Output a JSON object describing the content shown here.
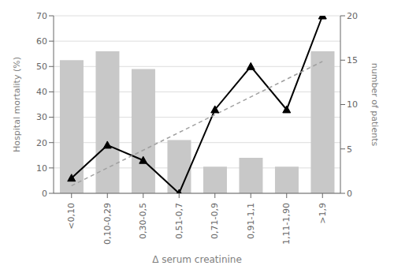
{
  "chart_data": {
    "type": "bar",
    "xlabel": "Δ serum creatinine",
    "ylabel": "Hospital mortality (%)",
    "y2label": "number of patients",
    "categories": [
      "<0,10",
      "0,10-0,29",
      "0,30-0,5",
      "0,51-0,7",
      "0,71-0,9",
      "0,91-1,1",
      "1,11-1,90",
      ">1,9"
    ],
    "series": [
      {
        "type": "bar",
        "axis": "y2",
        "color": "#c8c8c8",
        "values": [
          15,
          16,
          14,
          6,
          3,
          4,
          3,
          16
        ]
      },
      {
        "type": "line",
        "color": "#000000",
        "marker": "triangle",
        "values": [
          6,
          19,
          13,
          0,
          33,
          50,
          33,
          70
        ]
      },
      {
        "type": "line",
        "color": "#a0a0a0",
        "line_style": "dashed",
        "values": [
          3,
          null,
          null,
          null,
          null,
          null,
          null,
          52
        ]
      }
    ],
    "ylim": [
      0,
      70
    ],
    "yticks": [
      0,
      10,
      20,
      30,
      40,
      50,
      60,
      70
    ],
    "y2lim": [
      0,
      20
    ],
    "y2ticks": [
      0,
      5,
      10,
      15,
      20
    ],
    "grid": true
  }
}
